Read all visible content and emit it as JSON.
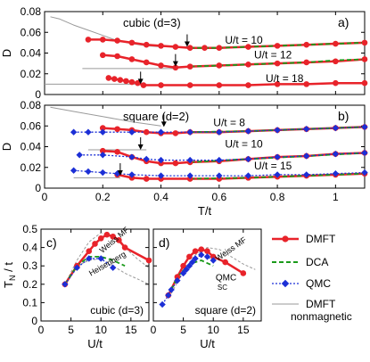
{
  "colors": {
    "dmft": "#e8232a",
    "dca": "#1a9a1a",
    "qmc": "#1c2fd6",
    "nonmag": "#9a9a9a",
    "ref": "#9a9a9a"
  },
  "legend": {
    "dmft": "DMFT",
    "dca": "DCA",
    "qmc": "QMC",
    "nonmag_line1": "DMFT",
    "nonmag_line2": "nonmagnetic"
  },
  "chart_data": [
    {
      "id": "a",
      "type": "line",
      "panel_label": "a)",
      "title": "cubic (d=3)",
      "xlabel": "",
      "ylabel": "D",
      "xlim": [
        0,
        1.1
      ],
      "ylim": [
        0,
        0.08
      ],
      "xticks": [
        "0",
        "0.2",
        "0.4",
        "0.6",
        "0.8",
        "1"
      ],
      "yticks": [
        "0",
        "0.02",
        "0.04",
        "0.06",
        "0.08"
      ],
      "annotations": [
        {
          "text": "U/t = 10",
          "x": 0.62,
          "y": 0.049
        },
        {
          "text": "U/t = 12",
          "x": 0.72,
          "y": 0.035
        },
        {
          "text": "U/t = 18",
          "x": 0.76,
          "y": 0.012
        }
      ],
      "arrows": [
        [
          0.49,
          0.046
        ],
        [
          0.45,
          0.027
        ],
        [
          0.33,
          0.01
        ]
      ],
      "series": [
        {
          "kind": "nonmag",
          "x": [
            0.02,
            0.05,
            0.1,
            0.15,
            0.2,
            0.25,
            0.3,
            0.35,
            0.4,
            0.45,
            0.5
          ],
          "y": [
            0.075,
            0.073,
            0.067,
            0.062,
            0.057,
            0.052,
            0.049,
            0.047,
            0.046,
            0.046,
            0.046
          ]
        },
        {
          "kind": "nonmag",
          "x": [
            0.13,
            0.2,
            0.3,
            0.4,
            0.45
          ],
          "y": [
            0.025,
            0.025,
            0.025,
            0.025,
            0.025
          ]
        },
        {
          "kind": "nonmag",
          "x": [
            0,
            0.1,
            0.2,
            0.33
          ],
          "y": [
            0.01,
            0.01,
            0.01,
            0.01
          ]
        },
        {
          "kind": "dmft",
          "x": [
            0.15,
            0.2,
            0.25,
            0.3,
            0.35,
            0.4,
            0.45,
            0.5,
            0.55,
            0.6,
            0.7,
            0.8,
            0.9,
            1.0,
            1.1
          ],
          "y": [
            0.053,
            0.053,
            0.052,
            0.05,
            0.048,
            0.047,
            0.046,
            0.045,
            0.045,
            0.045,
            0.046,
            0.047,
            0.048,
            0.049,
            0.05
          ]
        },
        {
          "kind": "dca",
          "x": [
            0.5,
            0.6,
            0.7,
            0.8,
            0.9,
            1.0,
            1.1
          ],
          "y": [
            0.045,
            0.045,
            0.046,
            0.047,
            0.048,
            0.049,
            0.05
          ]
        },
        {
          "kind": "dmft",
          "x": [
            0.2,
            0.25,
            0.3,
            0.35,
            0.4,
            0.45,
            0.5,
            0.6,
            0.7,
            0.8,
            0.9,
            1.0,
            1.1
          ],
          "y": [
            0.038,
            0.037,
            0.034,
            0.031,
            0.028,
            0.026,
            0.027,
            0.028,
            0.029,
            0.03,
            0.031,
            0.032,
            0.034
          ]
        },
        {
          "kind": "dca",
          "x": [
            0.5,
            0.6,
            0.7,
            0.8,
            0.9,
            1.0,
            1.1
          ],
          "y": [
            0.027,
            0.028,
            0.029,
            0.03,
            0.031,
            0.033,
            0.034
          ]
        },
        {
          "kind": "dmft",
          "x": [
            0.22,
            0.24,
            0.26,
            0.28,
            0.3,
            0.32,
            0.34,
            0.4,
            0.5,
            0.6,
            0.7,
            0.8,
            0.9,
            1.0,
            1.1
          ],
          "y": [
            0.016,
            0.015,
            0.014,
            0.013,
            0.012,
            0.011,
            0.009,
            0.009,
            0.009,
            0.009,
            0.009,
            0.01,
            0.01,
            0.011,
            0.011
          ]
        }
      ]
    },
    {
      "id": "b",
      "type": "line",
      "panel_label": "b)",
      "title": "square (d=2)",
      "xlabel": "T/t",
      "ylabel": "D",
      "xlim": [
        0,
        1.1
      ],
      "ylim": [
        0,
        0.08
      ],
      "xticks": [
        "0",
        "0.2",
        "0.4",
        "0.6",
        "0.8",
        "1"
      ],
      "yticks": [
        "0",
        "0.02",
        "0.04",
        "0.06",
        "0.08"
      ],
      "annotations": [
        {
          "text": "U/t = 8",
          "x": 0.58,
          "y": 0.06
        },
        {
          "text": "U/t = 10",
          "x": 0.62,
          "y": 0.039
        },
        {
          "text": "U/t = 15",
          "x": 0.72,
          "y": 0.018
        }
      ],
      "arrows": [
        [
          0.41,
          0.059
        ],
        [
          0.33,
          0.037
        ],
        [
          0.26,
          0.012
        ]
      ],
      "series": [
        {
          "kind": "nonmag",
          "x": [
            0.02,
            0.1,
            0.2,
            0.3,
            0.4
          ],
          "y": [
            0.078,
            0.074,
            0.069,
            0.064,
            0.06
          ]
        },
        {
          "kind": "nonmag",
          "x": [
            0.15,
            0.25,
            0.35
          ],
          "y": [
            0.037,
            0.037,
            0.037
          ]
        },
        {
          "kind": "nonmag",
          "x": [
            0.1,
            0.2,
            0.26
          ],
          "y": [
            0.01,
            0.01,
            0.01
          ]
        },
        {
          "kind": "dmft",
          "x": [
            0.2,
            0.25,
            0.3,
            0.35,
            0.4,
            0.45,
            0.5,
            0.6,
            0.7,
            0.8,
            0.9,
            1.0,
            1.1
          ],
          "y": [
            0.058,
            0.057,
            0.056,
            0.054,
            0.053,
            0.053,
            0.054,
            0.054,
            0.055,
            0.056,
            0.057,
            0.058,
            0.059
          ]
        },
        {
          "kind": "dca",
          "x": [
            0.5,
            0.7,
            0.9,
            1.1
          ],
          "y": [
            0.054,
            0.055,
            0.057,
            0.059
          ]
        },
        {
          "kind": "qmc",
          "x": [
            0.1,
            0.15,
            0.2,
            0.3,
            0.4,
            0.5,
            0.6,
            0.7,
            0.8,
            0.9,
            1.0,
            1.1
          ],
          "y": [
            0.054,
            0.054,
            0.054,
            0.054,
            0.054,
            0.054,
            0.054,
            0.055,
            0.056,
            0.057,
            0.058,
            0.059
          ]
        },
        {
          "kind": "dmft",
          "x": [
            0.2,
            0.25,
            0.3,
            0.35,
            0.4,
            0.45,
            0.5,
            0.6,
            0.7,
            0.8,
            0.9,
            1.0,
            1.1
          ],
          "y": [
            0.036,
            0.035,
            0.03,
            0.026,
            0.024,
            0.024,
            0.025,
            0.026,
            0.028,
            0.03,
            0.031,
            0.033,
            0.034
          ]
        },
        {
          "kind": "dca",
          "x": [
            0.5,
            0.7,
            0.9,
            1.1
          ],
          "y": [
            0.025,
            0.028,
            0.031,
            0.034
          ]
        },
        {
          "kind": "qmc",
          "x": [
            0.12,
            0.2,
            0.3,
            0.35,
            0.4,
            0.5,
            0.6,
            0.7,
            0.8,
            0.9,
            1.0,
            1.1
          ],
          "y": [
            0.032,
            0.032,
            0.03,
            0.028,
            0.027,
            0.027,
            0.027,
            0.028,
            0.03,
            0.031,
            0.033,
            0.034
          ]
        },
        {
          "kind": "dmft",
          "x": [
            0.25,
            0.3,
            0.35,
            0.4,
            0.5,
            0.6,
            0.7,
            0.8,
            0.9,
            1.0,
            1.1
          ],
          "y": [
            0.013,
            0.01,
            0.009,
            0.009,
            0.009,
            0.009,
            0.01,
            0.011,
            0.012,
            0.013,
            0.014
          ]
        },
        {
          "kind": "dca",
          "x": [
            0.5,
            0.7,
            0.9,
            1.1
          ],
          "y": [
            0.009,
            0.01,
            0.012,
            0.014
          ]
        },
        {
          "kind": "qmc",
          "x": [
            0.1,
            0.15,
            0.2,
            0.25,
            0.3,
            0.4,
            0.5,
            0.6,
            0.7,
            0.8,
            0.9,
            1.0,
            1.1
          ],
          "y": [
            0.017,
            0.016,
            0.015,
            0.014,
            0.013,
            0.012,
            0.012,
            0.012,
            0.012,
            0.013,
            0.013,
            0.014,
            0.015
          ]
        }
      ]
    },
    {
      "id": "c",
      "type": "line",
      "panel_label": "c)",
      "title": "cubic (d=3)",
      "xlabel": "U/t",
      "ylabel": "T_N / t",
      "xlim": [
        0,
        18
      ],
      "ylim": [
        0,
        0.5
      ],
      "xticks": [
        "0",
        "5",
        "10",
        "15"
      ],
      "yticks": [
        "0",
        "0.1",
        "0.2",
        "0.3",
        "0.4",
        "0.5"
      ],
      "annotations": [
        {
          "text": "Weiss MF",
          "x": 12.5,
          "y": 0.43,
          "rotate": -40
        },
        {
          "text": "Heisenberg",
          "x": 11.3,
          "y": 0.3,
          "rotate": -30
        }
      ],
      "series": [
        {
          "kind": "ref",
          "x": [
            4,
            6,
            8,
            10,
            12,
            14,
            16,
            18
          ],
          "y": [
            0.2,
            0.33,
            0.43,
            0.48,
            0.46,
            0.4,
            0.34,
            0.29
          ]
        },
        {
          "kind": "ref",
          "x": [
            6,
            8,
            10,
            12,
            14,
            16,
            18
          ],
          "y": [
            0.3,
            0.33,
            0.34,
            0.3,
            0.26,
            0.23,
            0.2
          ]
        },
        {
          "kind": "dmft",
          "x": [
            4,
            6,
            8,
            9,
            10,
            11,
            12,
            13,
            14,
            18
          ],
          "y": [
            0.2,
            0.3,
            0.38,
            0.42,
            0.45,
            0.47,
            0.46,
            0.44,
            0.4,
            0.33
          ]
        },
        {
          "kind": "dca",
          "x": [
            4,
            6,
            8,
            10,
            12,
            14
          ],
          "y": [
            0.2,
            0.3,
            0.35,
            0.35,
            0.33,
            0.3
          ]
        },
        {
          "kind": "qmc",
          "x": [
            4,
            6,
            8,
            10,
            12
          ],
          "y": [
            0.2,
            0.29,
            0.34,
            0.34,
            0.29
          ]
        }
      ]
    },
    {
      "id": "d",
      "type": "line",
      "panel_label": "d)",
      "title": "square (d=2)",
      "xlabel": "U/t",
      "ylabel": "",
      "xlim": [
        0,
        18
      ],
      "ylim": [
        0,
        0.5
      ],
      "xticks": [
        "0",
        "5",
        "10",
        "15"
      ],
      "yticks": [],
      "annotations": [
        {
          "text": "Weiss MF",
          "x": 13.2,
          "y": 0.38,
          "rotate": -35
        },
        {
          "text": "QMC",
          "x": 10.4,
          "y": 0.22
        },
        {
          "text": "SC",
          "x": 10.7,
          "y": 0.17
        }
      ],
      "series": [
        {
          "kind": "ref",
          "x": [
            3,
            5,
            7,
            9,
            11,
            13,
            15,
            17
          ],
          "y": [
            0.15,
            0.27,
            0.36,
            0.4,
            0.39,
            0.35,
            0.31,
            0.28
          ]
        },
        {
          "kind": "dmft",
          "x": [
            2.5,
            4,
            5,
            6,
            7,
            8,
            9,
            10,
            12,
            15
          ],
          "y": [
            0.14,
            0.24,
            0.3,
            0.35,
            0.38,
            0.39,
            0.38,
            0.35,
            0.32,
            0.26
          ]
        },
        {
          "kind": "dca",
          "x": [
            3,
            4,
            6,
            8,
            10
          ],
          "y": [
            0.17,
            0.24,
            0.31,
            0.33,
            0.3
          ]
        },
        {
          "kind": "qmc",
          "x": [
            1.5,
            2.5,
            3,
            4,
            5,
            5.5,
            6,
            6.5,
            7,
            8,
            9,
            10
          ],
          "y": [
            0.09,
            0.14,
            0.17,
            0.22,
            0.26,
            0.28,
            0.3,
            0.32,
            0.34,
            0.36,
            0.35,
            0.33
          ]
        }
      ]
    }
  ]
}
